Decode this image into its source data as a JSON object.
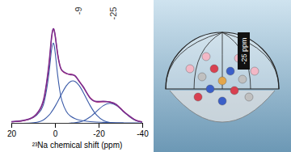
{
  "chart_data": {
    "type": "line",
    "x_label": "²³Na chemical shift (ppm)",
    "x": [
      20,
      15,
      10,
      7,
      5,
      3,
      2,
      1,
      0,
      -1,
      -2,
      -3,
      -5,
      -7,
      -9,
      -11,
      -13,
      -16,
      -19,
      -22,
      -25,
      -28,
      -31,
      -34,
      -37,
      -40
    ],
    "series": [
      {
        "color": "#7b2d8e",
        "values": [
          1.4,
          2.3,
          5.6,
          12.2,
          23.4,
          49.0,
          68.5,
          80.0,
          73.0,
          59.0,
          49.2,
          44.9,
          42.4,
          41.2,
          40.3,
          35.2,
          30.3,
          21.2,
          18.4,
          18.6,
          17.9,
          15.9,
          10.4,
          6.1,
          2.4,
          1.2
        ]
      },
      {
        "color": "#d0457a",
        "values": [
          1.2,
          2.1,
          5.3,
          11.7,
          22.5,
          48.2,
          67.6,
          79.7,
          73.4,
          59.7,
          49.7,
          44.5,
          41.9,
          41.7,
          40.0,
          35.7,
          29.8,
          21.7,
          18.0,
          18.2,
          18.3,
          15.6,
          10.7,
          5.8,
          2.6,
          1.0
        ]
      },
      {
        "color": "#3b5ba8",
        "values": [
          1.2,
          2.1,
          4.9,
          10.1,
          19.1,
          41.5,
          58.6,
          68.0,
          58.6,
          41.5,
          27.9,
          19.1,
          10.1,
          6.0,
          4.0,
          2.8,
          2.1,
          1.4,
          1.0,
          0.8,
          0.6,
          0.5,
          0.4,
          0.3,
          0.3,
          0.2
        ]
      },
      {
        "color": "#3b5ba8",
        "values": [
          0,
          0,
          0.4,
          1.6,
          3.4,
          6.7,
          9.0,
          11.7,
          14.8,
          18.2,
          21.8,
          25.4,
          31.8,
          35.5,
          35.5,
          31.8,
          25.4,
          14.8,
          6.7,
          2.4,
          0.7,
          0.1,
          0,
          0,
          0,
          0
        ]
      },
      {
        "color": "#3b5ba8",
        "values": [
          0,
          0,
          0,
          0,
          0,
          0,
          0,
          0,
          0,
          0,
          0,
          0,
          0,
          0.2,
          0.5,
          1.1,
          2.3,
          5.5,
          10.3,
          15.0,
          17.0,
          15.0,
          10.3,
          5.5,
          2.3,
          0.8
        ]
      }
    ],
    "xlim": [
      20,
      -40
    ],
    "xticks": [
      20,
      0,
      -20,
      -40
    ],
    "ylim": [
      0,
      100
    ],
    "tick_labels": "x",
    "annotations": [
      {
        "x": -9,
        "label": "-9"
      },
      {
        "x": -25,
        "label": "-25"
      }
    ]
  },
  "illustration": {
    "label": "-25 ppm"
  }
}
